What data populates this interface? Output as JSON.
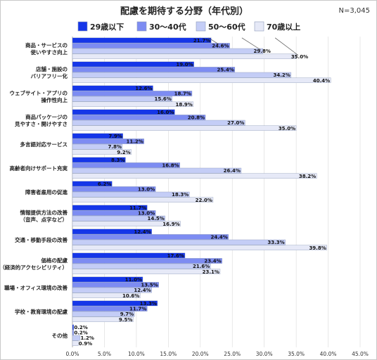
{
  "chart_data": {
    "type": "bar",
    "orientation": "horizontal",
    "title": "配慮を期待する分野（年代別）",
    "note": "N=3,045",
    "categories": [
      [
        "商品・サービスの",
        "使いやすさ向上"
      ],
      [
        "店舗・施設の",
        "バリアフリー化"
      ],
      [
        "ウェブサイト・アプリの",
        "操作性向上"
      ],
      [
        "商品パッケージの",
        "見やすさ・開けやすさ"
      ],
      [
        "多言語対応サービス"
      ],
      [
        "高齢者向けサポート充実"
      ],
      [
        "障害者雇用の促進"
      ],
      [
        "情報提供方法の改善",
        "（音声、点字など）"
      ],
      [
        "交通・移動手段の改善"
      ],
      [
        "価格の配慮",
        "（経済的アクセシビリティ）"
      ],
      [
        "職場・オフィス環境の改善"
      ],
      [
        "学校・教育環境の配慮"
      ],
      [
        "その他"
      ]
    ],
    "series": [
      {
        "name": "29歳以下",
        "color": "#1536e8",
        "values": [
          21.7,
          19.0,
          12.6,
          16.0,
          7.9,
          8.3,
          6.2,
          11.7,
          12.4,
          17.6,
          11.0,
          13.3,
          0.2
        ]
      },
      {
        "name": "30〜40代",
        "color": "#7d8cf2",
        "values": [
          24.6,
          25.4,
          18.7,
          20.8,
          11.2,
          16.8,
          13.0,
          13.0,
          24.4,
          23.4,
          13.5,
          11.7,
          0.2
        ]
      },
      {
        "name": "50〜60代",
        "color": "#c4cdf6",
        "values": [
          29.8,
          34.2,
          15.6,
          27.0,
          7.8,
          26.4,
          18.3,
          14.5,
          33.3,
          21.6,
          12.4,
          9.7,
          1.2
        ]
      },
      {
        "name": "70歳以上",
        "color": "#e6e9f7",
        "values": [
          35.0,
          40.4,
          18.9,
          35.0,
          9.2,
          38.2,
          22.0,
          16.9,
          39.8,
          23.1,
          10.6,
          9.5,
          0.9
        ]
      }
    ],
    "value_labels": [
      [
        "21.7%",
        "24.6%",
        "29.8%",
        "35.0%"
      ],
      [
        "19.0%",
        "25.4%",
        "34.2%",
        "40.4%"
      ],
      [
        "12.6%",
        "18.7%",
        "15.6%",
        "18.9%"
      ],
      [
        "16.0%",
        "20.8%",
        "27.0%",
        "35.0%"
      ],
      [
        "7.9%",
        "11.2%",
        "7.8%",
        "9.2%"
      ],
      [
        "8.3%",
        "16.8%",
        "26.4%",
        "38.2%"
      ],
      [
        "6.2%",
        "13.0%",
        "18.3%",
        "22.0%"
      ],
      [
        "11.7%",
        "13.0%",
        "14.5%",
        "16.9%"
      ],
      [
        "12.4%",
        "24.4%",
        "33.3%",
        "39.8%"
      ],
      [
        "17.6%",
        "23.4%",
        "21.6%",
        "23.1%"
      ],
      [
        "11.0%",
        "13.5%",
        "12.4%",
        "10.6%"
      ],
      [
        "13.3%",
        "11.7%",
        "9.7%",
        "9.5%"
      ],
      [
        "0.2%",
        "0.2%",
        "1.2%",
        "0.9%"
      ]
    ],
    "xlim": [
      0,
      45
    ],
    "x_ticks": [
      0,
      5,
      10,
      15,
      20,
      25,
      30,
      35,
      40,
      45
    ],
    "x_tick_labels": [
      "0.0%",
      "5.0%",
      "10.0%",
      "15.0%",
      "20.0%",
      "25.0%",
      "30.0%",
      "35.0%",
      "40.0%",
      "45.0%"
    ],
    "grid": true,
    "legend": "top"
  }
}
